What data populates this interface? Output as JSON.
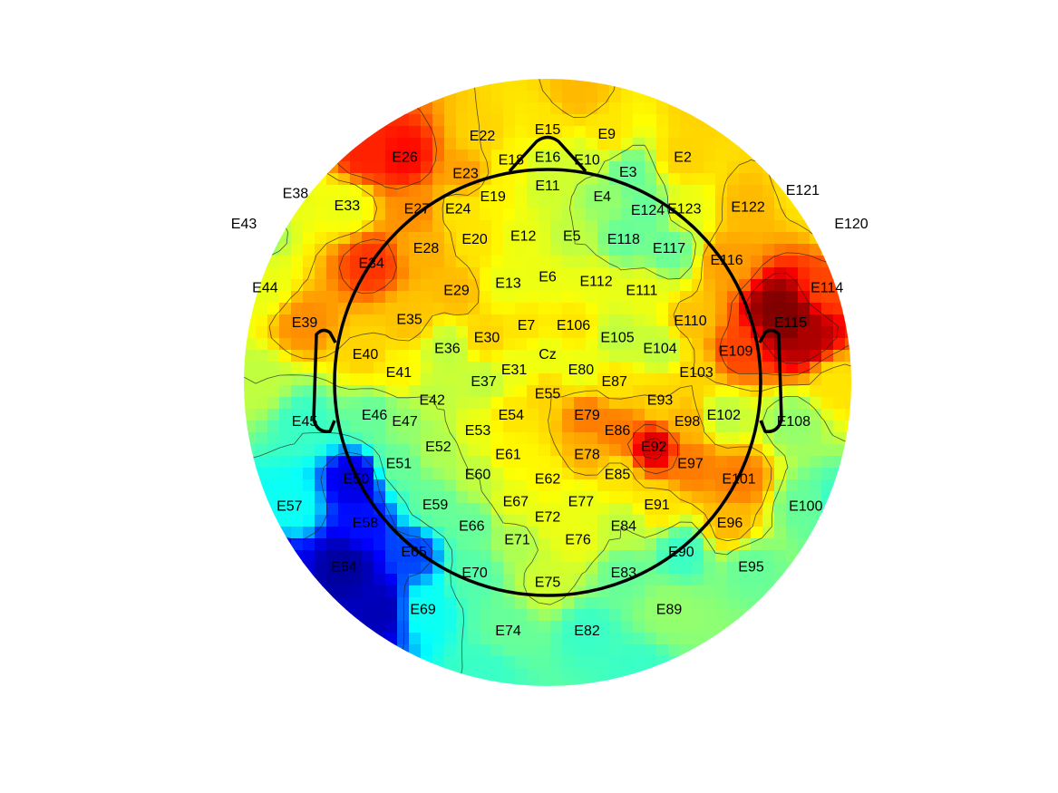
{
  "chart_data": {
    "type": "heatmap",
    "colormap": "jet",
    "colormap_stops": [
      "#00008f",
      "#0000ff",
      "#00ffff",
      "#80ff80",
      "#ffff00",
      "#ff8000",
      "#ff0000",
      "#800000"
    ],
    "value_range": [
      0,
      1
    ],
    "electrodes": [
      {
        "label": "E15",
        "x": 0.0,
        "y": 0.83,
        "v": 0.6
      },
      {
        "label": "E9",
        "x": 0.195,
        "y": 0.815,
        "v": 0.6
      },
      {
        "label": "E22",
        "x": -0.215,
        "y": 0.81,
        "v": 0.62
      },
      {
        "label": "E16",
        "x": 0.0,
        "y": 0.74,
        "v": 0.52
      },
      {
        "label": "E10",
        "x": 0.13,
        "y": 0.73,
        "v": 0.52
      },
      {
        "label": "E18",
        "x": -0.12,
        "y": 0.73,
        "v": 0.58
      },
      {
        "label": "E26",
        "x": -0.47,
        "y": 0.74,
        "v": 0.85
      },
      {
        "label": "E2",
        "x": 0.445,
        "y": 0.74,
        "v": 0.62
      },
      {
        "label": "E23",
        "x": -0.27,
        "y": 0.685,
        "v": 0.68
      },
      {
        "label": "E3",
        "x": 0.265,
        "y": 0.69,
        "v": 0.4
      },
      {
        "label": "E11",
        "x": 0.0,
        "y": 0.645,
        "v": 0.52
      },
      {
        "label": "E19",
        "x": -0.18,
        "y": 0.61,
        "v": 0.58
      },
      {
        "label": "E4",
        "x": 0.18,
        "y": 0.61,
        "v": 0.45
      },
      {
        "label": "E38",
        "x": -0.83,
        "y": 0.62,
        "v": 0.55
      },
      {
        "label": "E33",
        "x": -0.66,
        "y": 0.58,
        "v": 0.55
      },
      {
        "label": "E27",
        "x": -0.43,
        "y": 0.57,
        "v": 0.7
      },
      {
        "label": "E24",
        "x": -0.295,
        "y": 0.57,
        "v": 0.6
      },
      {
        "label": "E124",
        "x": 0.33,
        "y": 0.565,
        "v": 0.4
      },
      {
        "label": "E123",
        "x": 0.45,
        "y": 0.57,
        "v": 0.55
      },
      {
        "label": "E122",
        "x": 0.66,
        "y": 0.575,
        "v": 0.65
      },
      {
        "label": "E121",
        "x": 0.84,
        "y": 0.63,
        "v": 0.6
      },
      {
        "label": "E43",
        "x": -1.0,
        "y": 0.52,
        "v": 0.35
      },
      {
        "label": "E120",
        "x": 1.0,
        "y": 0.52,
        "v": 0.55
      },
      {
        "label": "E20",
        "x": -0.24,
        "y": 0.47,
        "v": 0.6
      },
      {
        "label": "E12",
        "x": -0.08,
        "y": 0.48,
        "v": 0.55
      },
      {
        "label": "E5",
        "x": 0.08,
        "y": 0.48,
        "v": 0.5
      },
      {
        "label": "E118",
        "x": 0.25,
        "y": 0.47,
        "v": 0.4
      },
      {
        "label": "E117",
        "x": 0.4,
        "y": 0.44,
        "v": 0.4
      },
      {
        "label": "E28",
        "x": -0.4,
        "y": 0.44,
        "v": 0.66
      },
      {
        "label": "E34",
        "x": -0.58,
        "y": 0.39,
        "v": 0.8
      },
      {
        "label": "E116",
        "x": 0.59,
        "y": 0.4,
        "v": 0.68
      },
      {
        "label": "E44",
        "x": -0.93,
        "y": 0.31,
        "v": 0.55
      },
      {
        "label": "E114",
        "x": 0.92,
        "y": 0.31,
        "v": 0.78
      },
      {
        "label": "E13",
        "x": -0.13,
        "y": 0.325,
        "v": 0.55
      },
      {
        "label": "E6",
        "x": 0.0,
        "y": 0.345,
        "v": 0.55
      },
      {
        "label": "E112",
        "x": 0.16,
        "y": 0.33,
        "v": 0.55
      },
      {
        "label": "E29",
        "x": -0.3,
        "y": 0.3,
        "v": 0.65
      },
      {
        "label": "E111",
        "x": 0.31,
        "y": 0.3,
        "v": 0.55
      },
      {
        "label": "E39",
        "x": -0.8,
        "y": 0.195,
        "v": 0.7
      },
      {
        "label": "E35",
        "x": -0.455,
        "y": 0.205,
        "v": 0.64
      },
      {
        "label": "E7",
        "x": -0.07,
        "y": 0.185,
        "v": 0.6
      },
      {
        "label": "E106",
        "x": 0.085,
        "y": 0.185,
        "v": 0.6
      },
      {
        "label": "E110",
        "x": 0.47,
        "y": 0.2,
        "v": 0.64
      },
      {
        "label": "E115",
        "x": 0.8,
        "y": 0.195,
        "v": 1.0
      },
      {
        "label": "E30",
        "x": -0.2,
        "y": 0.145,
        "v": 0.62
      },
      {
        "label": "E105",
        "x": 0.23,
        "y": 0.145,
        "v": 0.5
      },
      {
        "label": "E36",
        "x": -0.33,
        "y": 0.11,
        "v": 0.5
      },
      {
        "label": "E104",
        "x": 0.37,
        "y": 0.11,
        "v": 0.5
      },
      {
        "label": "E109",
        "x": 0.62,
        "y": 0.1,
        "v": 0.78
      },
      {
        "label": "E40",
        "x": -0.6,
        "y": 0.09,
        "v": 0.62
      },
      {
        "label": "Cz",
        "x": 0.0,
        "y": 0.09,
        "v": 0.55
      },
      {
        "label": "E31",
        "x": -0.11,
        "y": 0.04,
        "v": 0.55
      },
      {
        "label": "E80",
        "x": 0.11,
        "y": 0.04,
        "v": 0.55
      },
      {
        "label": "E41",
        "x": -0.49,
        "y": 0.03,
        "v": 0.58
      },
      {
        "label": "E103",
        "x": 0.49,
        "y": 0.03,
        "v": 0.62
      },
      {
        "label": "E37",
        "x": -0.21,
        "y": 0.0,
        "v": 0.5
      },
      {
        "label": "E87",
        "x": 0.22,
        "y": 0.0,
        "v": 0.6
      },
      {
        "label": "E55",
        "x": 0.0,
        "y": -0.04,
        "v": 0.62
      },
      {
        "label": "E42",
        "x": -0.38,
        "y": -0.06,
        "v": 0.5
      },
      {
        "label": "E93",
        "x": 0.37,
        "y": -0.06,
        "v": 0.62
      },
      {
        "label": "E54",
        "x": -0.12,
        "y": -0.11,
        "v": 0.6
      },
      {
        "label": "E79",
        "x": 0.13,
        "y": -0.11,
        "v": 0.72
      },
      {
        "label": "E102",
        "x": 0.58,
        "y": -0.11,
        "v": 0.5
      },
      {
        "label": "E46",
        "x": -0.57,
        "y": -0.11,
        "v": 0.4
      },
      {
        "label": "E45",
        "x": -0.8,
        "y": -0.13,
        "v": 0.35
      },
      {
        "label": "E108",
        "x": 0.81,
        "y": -0.13,
        "v": 0.45
      },
      {
        "label": "E47",
        "x": -0.47,
        "y": -0.13,
        "v": 0.45
      },
      {
        "label": "E98",
        "x": 0.46,
        "y": -0.13,
        "v": 0.65
      },
      {
        "label": "E53",
        "x": -0.23,
        "y": -0.16,
        "v": 0.55
      },
      {
        "label": "E86",
        "x": 0.23,
        "y": -0.16,
        "v": 0.72
      },
      {
        "label": "E52",
        "x": -0.36,
        "y": -0.215,
        "v": 0.48
      },
      {
        "label": "E92",
        "x": 0.35,
        "y": -0.215,
        "v": 0.9
      },
      {
        "label": "E61",
        "x": -0.13,
        "y": -0.24,
        "v": 0.58
      },
      {
        "label": "E78",
        "x": 0.13,
        "y": -0.24,
        "v": 0.66
      },
      {
        "label": "E51",
        "x": -0.49,
        "y": -0.27,
        "v": 0.4
      },
      {
        "label": "E97",
        "x": 0.47,
        "y": -0.27,
        "v": 0.72
      },
      {
        "label": "E60",
        "x": -0.23,
        "y": -0.305,
        "v": 0.5
      },
      {
        "label": "E85",
        "x": 0.23,
        "y": -0.305,
        "v": 0.6
      },
      {
        "label": "E62",
        "x": 0.0,
        "y": -0.32,
        "v": 0.58
      },
      {
        "label": "E50",
        "x": -0.63,
        "y": -0.32,
        "v": 0.1
      },
      {
        "label": "E101",
        "x": 0.63,
        "y": -0.32,
        "v": 0.72
      },
      {
        "label": "E67",
        "x": -0.105,
        "y": -0.395,
        "v": 0.55
      },
      {
        "label": "E77",
        "x": 0.11,
        "y": -0.395,
        "v": 0.55
      },
      {
        "label": "E59",
        "x": -0.37,
        "y": -0.405,
        "v": 0.4
      },
      {
        "label": "E91",
        "x": 0.36,
        "y": -0.405,
        "v": 0.6
      },
      {
        "label": "E57",
        "x": -0.85,
        "y": -0.41,
        "v": 0.3
      },
      {
        "label": "E100",
        "x": 0.85,
        "y": -0.41,
        "v": 0.4
      },
      {
        "label": "E72",
        "x": 0.0,
        "y": -0.445,
        "v": 0.55
      },
      {
        "label": "E58",
        "x": -0.6,
        "y": -0.465,
        "v": 0.15
      },
      {
        "label": "E96",
        "x": 0.6,
        "y": -0.465,
        "v": 0.65
      },
      {
        "label": "E66",
        "x": -0.25,
        "y": -0.475,
        "v": 0.4
      },
      {
        "label": "E84",
        "x": 0.25,
        "y": -0.475,
        "v": 0.5
      },
      {
        "label": "E71",
        "x": -0.1,
        "y": -0.52,
        "v": 0.48
      },
      {
        "label": "E76",
        "x": 0.1,
        "y": -0.52,
        "v": 0.55
      },
      {
        "label": "E65",
        "x": -0.44,
        "y": -0.56,
        "v": 0.18
      },
      {
        "label": "E90",
        "x": 0.44,
        "y": -0.56,
        "v": 0.35
      },
      {
        "label": "E64",
        "x": -0.67,
        "y": -0.61,
        "v": 0.02
      },
      {
        "label": "E95",
        "x": 0.67,
        "y": -0.61,
        "v": 0.4
      },
      {
        "label": "E70",
        "x": -0.24,
        "y": -0.63,
        "v": 0.38
      },
      {
        "label": "E83",
        "x": 0.25,
        "y": -0.63,
        "v": 0.4
      },
      {
        "label": "E75",
        "x": 0.0,
        "y": -0.66,
        "v": 0.52
      },
      {
        "label": "E69",
        "x": -0.41,
        "y": -0.75,
        "v": 0.3
      },
      {
        "label": "E89",
        "x": 0.4,
        "y": -0.75,
        "v": 0.45
      },
      {
        "label": "E74",
        "x": -0.13,
        "y": -0.82,
        "v": 0.4
      },
      {
        "label": "E82",
        "x": 0.13,
        "y": -0.82,
        "v": 0.35
      }
    ],
    "extra_sources": [
      {
        "x": -0.6,
        "y": 0.75,
        "v": 0.82
      },
      {
        "x": -0.9,
        "y": -0.6,
        "v": 0.12
      },
      {
        "x": -0.55,
        "y": -0.75,
        "v": 0.05
      },
      {
        "x": 0.1,
        "y": 0.95,
        "v": 0.65
      },
      {
        "x": 0.5,
        "y": 0.9,
        "v": 0.62
      },
      {
        "x": -0.2,
        "y": -0.95,
        "v": 0.35
      },
      {
        "x": 0.3,
        "y": -0.95,
        "v": 0.35
      },
      {
        "x": 0.95,
        "y": -0.4,
        "v": 0.35
      },
      {
        "x": -0.95,
        "y": 0.0,
        "v": 0.5
      },
      {
        "x": 0.95,
        "y": 0.0,
        "v": 0.6
      },
      {
        "x": 0.76,
        "y": 0.24,
        "v": 1.0
      },
      {
        "x": 0.85,
        "y": 0.15,
        "v": 0.95
      }
    ]
  }
}
